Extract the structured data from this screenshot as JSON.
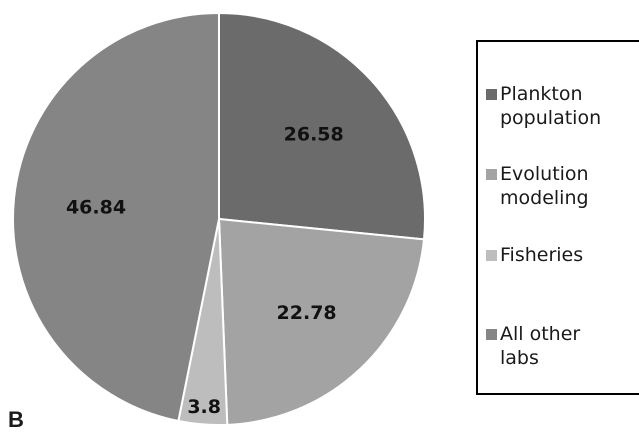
{
  "chart_data": {
    "type": "pie",
    "panel_label": "B",
    "slices": [
      {
        "label": "Plankton population",
        "value": 26.58,
        "value_label": "26.58",
        "color": "#6b6b6b"
      },
      {
        "label": "Evolution modeling",
        "value": 22.78,
        "value_label": "22.78",
        "color": "#a3a3a3"
      },
      {
        "label": "Fisheries",
        "value": 3.8,
        "value_label": "3.8",
        "color": "#bdbdbd"
      },
      {
        "label": "All other labs",
        "value": 46.84,
        "value_label": "46.84",
        "color": "#858585"
      }
    ],
    "legend": {
      "placement": "right",
      "entries": [
        {
          "text": "Plankton\npopulation",
          "color": "#6b6b6b"
        },
        {
          "text": "Evolution\nmodeling",
          "color": "#a3a3a3"
        },
        {
          "text": "Fisheries",
          "color": "#bdbdbd"
        },
        {
          "text": "All other\nlabs",
          "color": "#858585"
        }
      ]
    }
  }
}
